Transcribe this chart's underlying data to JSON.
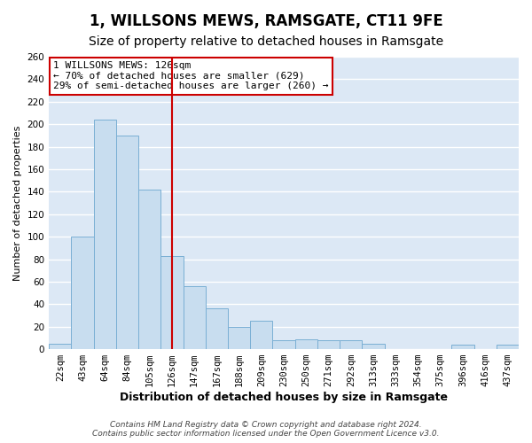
{
  "title": "1, WILLSONS MEWS, RAMSGATE, CT11 9FE",
  "subtitle": "Size of property relative to detached houses in Ramsgate",
  "xlabel": "Distribution of detached houses by size in Ramsgate",
  "ylabel": "Number of detached properties",
  "bar_labels": [
    "22sqm",
    "43sqm",
    "64sqm",
    "84sqm",
    "105sqm",
    "126sqm",
    "147sqm",
    "167sqm",
    "188sqm",
    "209sqm",
    "230sqm",
    "250sqm",
    "271sqm",
    "292sqm",
    "313sqm",
    "333sqm",
    "354sqm",
    "375sqm",
    "396sqm",
    "416sqm",
    "437sqm"
  ],
  "bar_heights": [
    5,
    100,
    204,
    190,
    142,
    83,
    56,
    36,
    20,
    25,
    8,
    9,
    8,
    8,
    5,
    0,
    0,
    0,
    4,
    0,
    4
  ],
  "bar_color": "#c8ddef",
  "bar_edge_color": "#7aafd4",
  "highlight_index": 5,
  "highlight_color": "#cc0000",
  "ylim": [
    0,
    260
  ],
  "annotation_title": "1 WILLSONS MEWS: 126sqm",
  "annotation_line1": "← 70% of detached houses are smaller (629)",
  "annotation_line2": "29% of semi-detached houses are larger (260) →",
  "annotation_box_color": "#ffffff",
  "annotation_box_edge": "#cc0000",
  "footer_line1": "Contains HM Land Registry data © Crown copyright and database right 2024.",
  "footer_line2": "Contains public sector information licensed under the Open Government Licence v3.0.",
  "bg_color": "#ffffff",
  "plot_bg_color": "#dce8f5",
  "grid_color": "#ffffff",
  "title_fontsize": 12,
  "subtitle_fontsize": 10,
  "xlabel_fontsize": 9,
  "ylabel_fontsize": 8,
  "tick_fontsize": 7.5,
  "footer_fontsize": 6.5
}
